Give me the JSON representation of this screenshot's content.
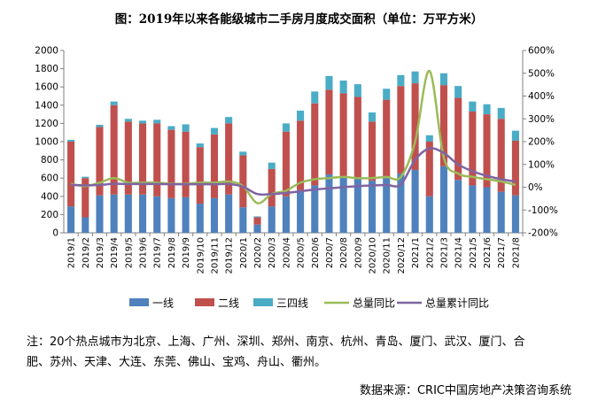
{
  "title": "图：2019年以来各能级城市二手房月度成交面积（单位：万平方米）",
  "note": {
    "line1": "注：20个热点城市为北京、上海、广州、深圳、郑州、南京、杭州、青岛、厦门、武汉、厦门、合",
    "line2": "肥、苏州、天津、大连、东莞、佛山、宝鸡、舟山、衢州。"
  },
  "source": "数据来源：CRIC中国房地产决策咨询系统",
  "colors": {
    "tier1": "#4f81bd",
    "tier2": "#c0504d",
    "tier34": "#4bacc6",
    "yoy": "#9bbb59",
    "cum_yoy": "#8064a2",
    "axis": "#808080"
  },
  "chart_data": {
    "type": "bar",
    "stacked": true,
    "categories": [
      "2019/1",
      "2019/2",
      "2019/3",
      "2019/4",
      "2019/5",
      "2019/6",
      "2019/7",
      "2019/8",
      "2019/9",
      "2019/10",
      "2019/11",
      "2019/12",
      "2020/1",
      "2020/2",
      "2020/3",
      "2020/4",
      "2020/5",
      "2020/6",
      "2020/7",
      "2020/8",
      "2020/9",
      "2020/10",
      "2020/11",
      "2020/12",
      "2021/1",
      "2021/2",
      "2021/3",
      "2021/4",
      "2021/5",
      "2021/6",
      "2021/7",
      "2021/8"
    ],
    "y_left": {
      "min": 0,
      "max": 2000,
      "step": 200,
      "ticks": [
        "0",
        "200",
        "400",
        "600",
        "800",
        "1000",
        "1200",
        "1400",
        "1600",
        "1800",
        "2000"
      ]
    },
    "y_right": {
      "min": -200,
      "max": 600,
      "step": 100,
      "ticks": [
        "-200%",
        "-100%",
        "0%",
        "100%",
        "200%",
        "300%",
        "400%",
        "500%",
        "600%"
      ]
    },
    "series": [
      {
        "name": "一线",
        "type": "bar",
        "axis": "left",
        "values": [
          290,
          170,
          410,
          420,
          420,
          420,
          400,
          380,
          390,
          320,
          380,
          420,
          280,
          90,
          290,
          400,
          470,
          520,
          640,
          620,
          600,
          570,
          600,
          650,
          690,
          400,
          730,
          580,
          520,
          500,
          450,
          410
        ]
      },
      {
        "name": "二线",
        "type": "bar",
        "axis": "left",
        "values": [
          710,
          430,
          750,
          980,
          800,
          780,
          800,
          750,
          720,
          620,
          700,
          780,
          570,
          80,
          410,
          710,
          760,
          900,
          930,
          910,
          890,
          650,
          860,
          960,
          950,
          600,
          890,
          900,
          810,
          800,
          800,
          600
        ]
      },
      {
        "name": "三四线",
        "type": "bar",
        "axis": "left",
        "values": [
          20,
          15,
          25,
          40,
          30,
          30,
          40,
          40,
          80,
          40,
          70,
          70,
          40,
          10,
          70,
          90,
          110,
          130,
          150,
          140,
          140,
          100,
          120,
          120,
          130,
          70,
          130,
          130,
          110,
          110,
          120,
          110
        ]
      },
      {
        "name": "总量同比",
        "type": "line",
        "axis": "right",
        "values": [
          15,
          5,
          20,
          40,
          20,
          20,
          20,
          15,
          15,
          20,
          20,
          25,
          5,
          -70,
          -30,
          -15,
          20,
          35,
          40,
          45,
          40,
          40,
          45,
          45,
          200,
          510,
          130,
          60,
          45,
          35,
          25,
          10
        ]
      },
      {
        "name": "总量累计同比",
        "type": "line",
        "axis": "right",
        "values": [
          10,
          8,
          10,
          15,
          14,
          14,
          14,
          13,
          13,
          13,
          13,
          14,
          2,
          -30,
          -30,
          -25,
          -18,
          -10,
          -5,
          0,
          5,
          8,
          10,
          12,
          120,
          170,
          150,
          100,
          70,
          50,
          35,
          25
        ]
      }
    ]
  }
}
